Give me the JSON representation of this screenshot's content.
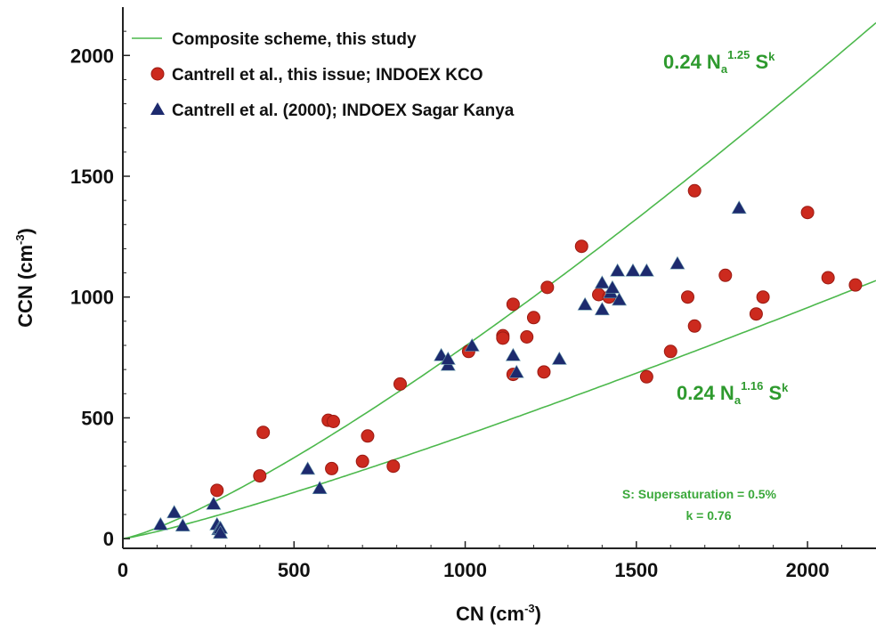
{
  "chart_data": {
    "type": "scatter",
    "title": "",
    "xlabel": "CN  (cm-3)",
    "ylabel": "CCN  (cm-3)",
    "xlabel_main": "CN  (cm",
    "xlabel_sup": "-3",
    "xlabel_end": ")",
    "ylabel_main": "CCN  (cm",
    "ylabel_sup": "-3",
    "ylabel_end": ")",
    "xlim": [
      0,
      2200
    ],
    "ylim": [
      -40,
      2200
    ],
    "xticks": [
      0,
      500,
      1000,
      1500,
      2000
    ],
    "yticks": [
      0,
      500,
      1000,
      1500,
      2000
    ],
    "xtick_labels": [
      "0",
      "500",
      "1000",
      "1500",
      "2000"
    ],
    "ytick_labels": [
      "0",
      "500",
      "1000",
      "1500",
      "2000"
    ],
    "grid": false,
    "legend_position": "top-left",
    "colors": {
      "curve": "#4cb84c",
      "curve_label": "#2e9a2e",
      "circle_fill": "#cc2a1e",
      "circle_stroke": "#9a1a12",
      "triangle_fill": "#1d2a6e",
      "axis": "#222222"
    },
    "legend": [
      {
        "marker": "line",
        "label": "Composite scheme, this study"
      },
      {
        "marker": "circle",
        "label": "Cantrell et al., this issue; INDOEX KCO"
      },
      {
        "marker": "triangle",
        "label": "Cantrell et al. (2000); INDOEX Sagar Kanya"
      }
    ],
    "curves": [
      {
        "formula_base": "0.24 N",
        "formula_sub": "a",
        "formula_exp": "1.25",
        "formula_tail": " S",
        "formula_tail_exp": "k",
        "coef": 0.24,
        "exponent": 1.25,
        "s": 0.5,
        "k": 0.76
      },
      {
        "formula_base": "0.24 N",
        "formula_sub": "a",
        "formula_exp": "1.16",
        "formula_tail": " S",
        "formula_tail_exp": "k",
        "coef": 0.24,
        "exponent": 1.16,
        "s": 0.5,
        "k": 0.76
      }
    ],
    "annotations": {
      "supersaturation": "S: Supersaturation = 0.5%",
      "k_value": "k = 0.76"
    },
    "series": [
      {
        "name": "Cantrell et al., this issue; INDOEX KCO",
        "marker": "circle",
        "points": [
          [
            275,
            200
          ],
          [
            400,
            260
          ],
          [
            410,
            440
          ],
          [
            600,
            490
          ],
          [
            615,
            485
          ],
          [
            610,
            290
          ],
          [
            700,
            320
          ],
          [
            715,
            425
          ],
          [
            790,
            300
          ],
          [
            810,
            640
          ],
          [
            1010,
            775
          ],
          [
            1110,
            840
          ],
          [
            1110,
            830
          ],
          [
            1140,
            970
          ],
          [
            1140,
            680
          ],
          [
            1180,
            835
          ],
          [
            1200,
            915
          ],
          [
            1230,
            690
          ],
          [
            1240,
            1040
          ],
          [
            1340,
            1210
          ],
          [
            1390,
            1010
          ],
          [
            1420,
            1000
          ],
          [
            1530,
            670
          ],
          [
            1600,
            775
          ],
          [
            1650,
            1000
          ],
          [
            1670,
            880
          ],
          [
            1670,
            1440
          ],
          [
            1760,
            1090
          ],
          [
            1850,
            930
          ],
          [
            1870,
            1000
          ],
          [
            2000,
            1350
          ],
          [
            2060,
            1080
          ],
          [
            2140,
            1050
          ]
        ]
      },
      {
        "name": "Cantrell et al. (2000); INDOEX Sagar Kanya",
        "marker": "triangle",
        "points": [
          [
            110,
            60
          ],
          [
            150,
            110
          ],
          [
            175,
            55
          ],
          [
            265,
            145
          ],
          [
            275,
            60
          ],
          [
            280,
            40
          ],
          [
            285,
            45
          ],
          [
            285,
            25
          ],
          [
            540,
            290
          ],
          [
            575,
            210
          ],
          [
            930,
            760
          ],
          [
            950,
            720
          ],
          [
            950,
            745
          ],
          [
            1020,
            800
          ],
          [
            1140,
            760
          ],
          [
            1150,
            690
          ],
          [
            1275,
            745
          ],
          [
            1350,
            970
          ],
          [
            1400,
            1060
          ],
          [
            1400,
            950
          ],
          [
            1425,
            1020
          ],
          [
            1430,
            1040
          ],
          [
            1445,
            1110
          ],
          [
            1450,
            990
          ],
          [
            1490,
            1110
          ],
          [
            1530,
            1110
          ],
          [
            1620,
            1140
          ],
          [
            1800,
            1370
          ]
        ]
      }
    ]
  }
}
